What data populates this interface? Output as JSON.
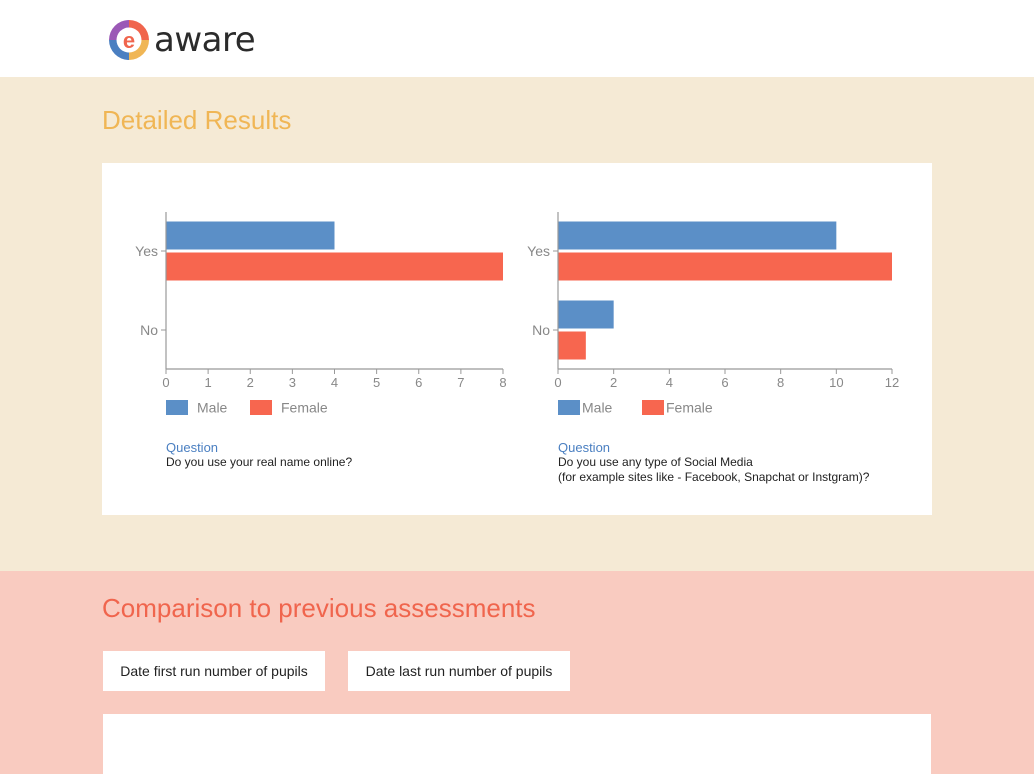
{
  "header": {
    "logo_letter": "e",
    "logo_text": "aware",
    "logo_colors": [
      "#f0654d",
      "#f0b655",
      "#4a7fc1",
      "#9b59b6"
    ]
  },
  "results": {
    "title": "Detailed Results",
    "bg_color": "#f5ead5",
    "title_color": "#f0b655"
  },
  "comparison": {
    "title": "Comparison to previous assessments",
    "buttons": [
      {
        "label": "Date first run number of pupils"
      },
      {
        "label": "Date last run number of pupils"
      }
    ],
    "bg_color": "#f9cbc0",
    "title_color": "#f0654d"
  },
  "chart_data": [
    {
      "type": "bar",
      "orientation": "horizontal",
      "categories": [
        "Yes",
        "No"
      ],
      "series": [
        {
          "name": "Male",
          "values": [
            4,
            0
          ],
          "color": "#5b8fc7"
        },
        {
          "name": "Female",
          "values": [
            8,
            0
          ],
          "color": "#f7664f"
        }
      ],
      "xlim": [
        0,
        8
      ],
      "xticks": [
        0,
        1,
        2,
        3,
        4,
        5,
        6,
        7,
        8
      ],
      "legend": "bottom-left",
      "grid": false,
      "question_label": "Question",
      "question_lines": [
        "Do you use your real name online?"
      ]
    },
    {
      "type": "bar",
      "orientation": "horizontal",
      "categories": [
        "Yes",
        "No"
      ],
      "series": [
        {
          "name": "Male",
          "values": [
            10,
            2
          ],
          "color": "#5b8fc7"
        },
        {
          "name": "Female",
          "values": [
            12,
            1
          ],
          "color": "#f7664f"
        }
      ],
      "xlim": [
        0,
        12
      ],
      "xticks": [
        0,
        2,
        4,
        6,
        8,
        10,
        12
      ],
      "legend": "bottom-left",
      "grid": false,
      "question_label": "Question",
      "question_lines": [
        "Do you use any type of Social Media",
        "(for example sites like - Facebook, Snapchat or Instgram)?"
      ]
    }
  ]
}
